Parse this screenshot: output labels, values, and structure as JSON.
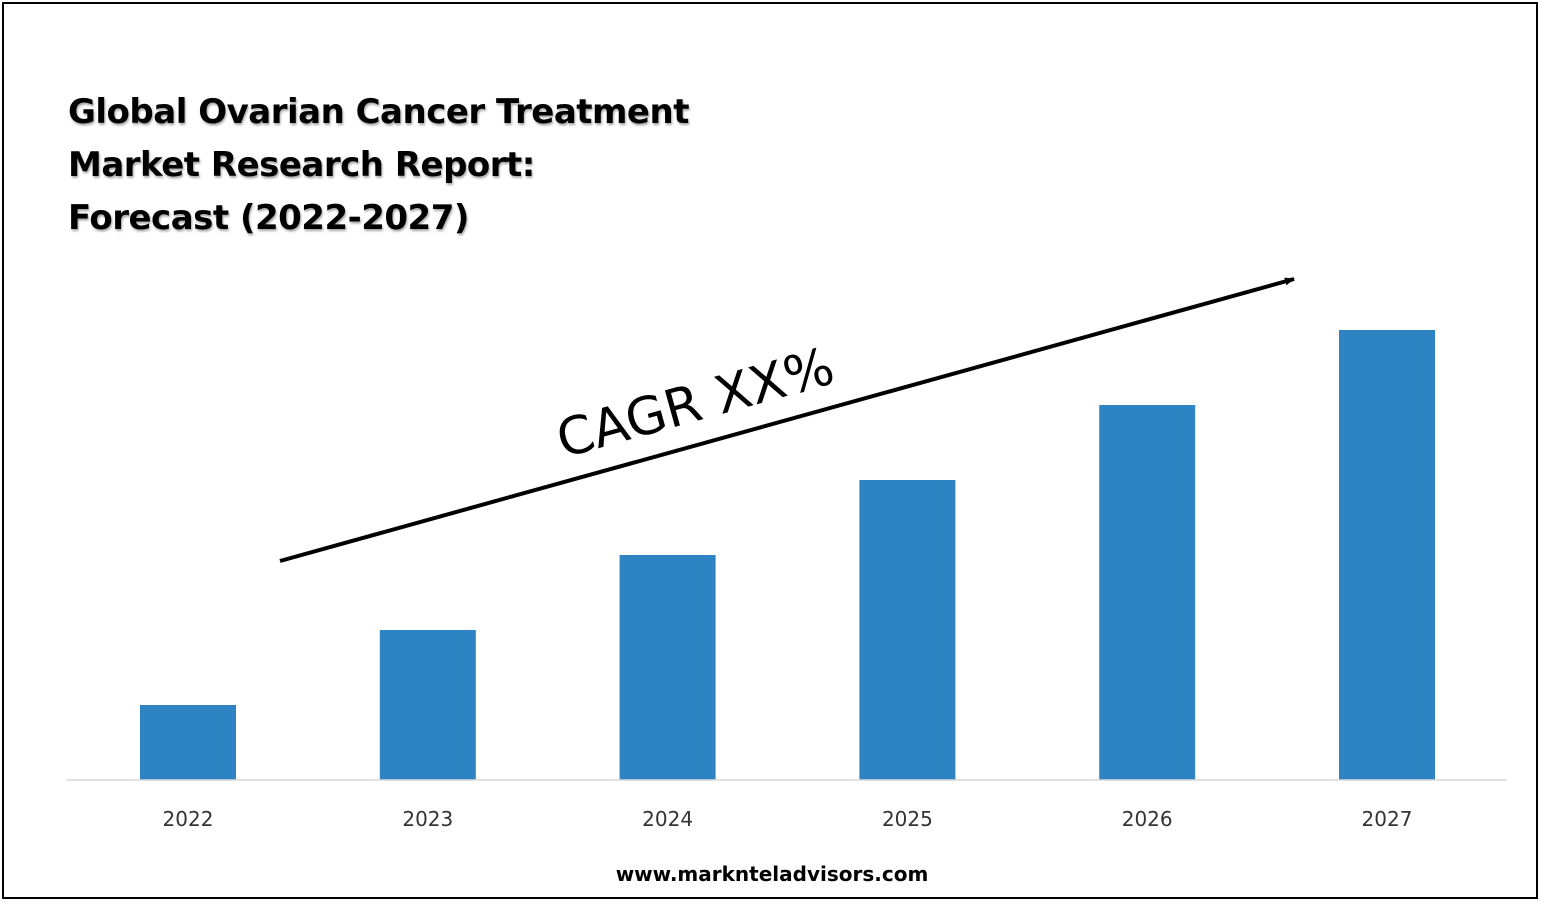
{
  "title_lines": [
    "Global Ovarian Cancer Treatment",
    "Market Research Report:",
    "Forecast (2022-2027)"
  ],
  "annotation": "CAGR XX%",
  "footer": "www.marknteladvisors.com",
  "colors": {
    "bar": "#2e83c3",
    "arrow": "#000000",
    "axis": "#d9d9d9"
  },
  "chart_data": {
    "type": "bar",
    "categories": [
      "2022",
      "2023",
      "2024",
      "2025",
      "2026",
      "2027"
    ],
    "values": [
      1,
      2,
      3,
      4,
      5,
      6
    ],
    "ylim": [
      0,
      6
    ],
    "grid": false,
    "legend": "none",
    "title": "Global Ovarian Cancer Treatment Market Research Report: Forecast (2022-2027)"
  }
}
